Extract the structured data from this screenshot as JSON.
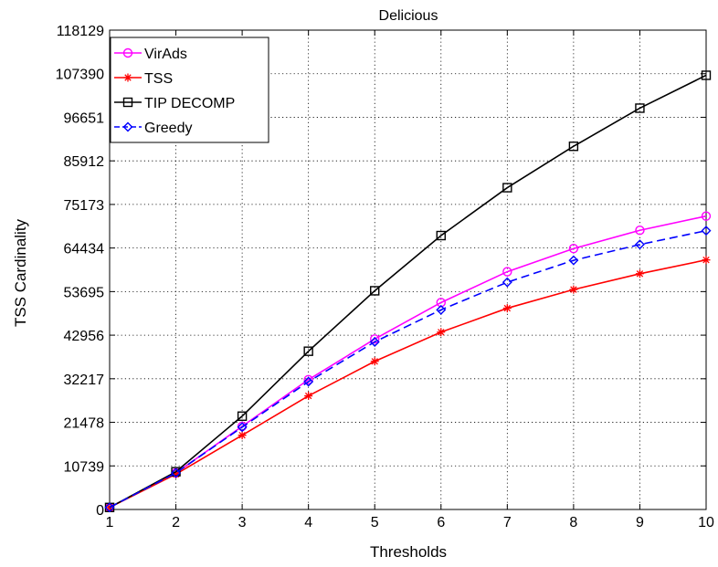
{
  "chart_data": {
    "type": "line",
    "title": "Delicious",
    "xlabel": "Thresholds",
    "ylabel": "TSS Cardinality",
    "x": [
      1,
      2,
      3,
      4,
      5,
      6,
      7,
      8,
      9,
      10
    ],
    "xlim": [
      1,
      10
    ],
    "ylim": [
      0,
      118129
    ],
    "xticks": [
      "1",
      "2",
      "3",
      "4",
      "5",
      "6",
      "7",
      "8",
      "9",
      "10"
    ],
    "yticks": [
      0,
      10739,
      21478,
      32217,
      42956,
      53695,
      64434,
      75173,
      85912,
      96651,
      107390,
      118129
    ],
    "ytick_labels": [
      "0",
      "10739",
      "21478",
      "32217",
      "42956",
      "53695",
      "64434",
      "75173",
      "85912",
      "96651",
      "107390",
      "118129"
    ],
    "grid": true,
    "legend_position": "top-left",
    "series": [
      {
        "name": "VirAds",
        "color": "#ff00ff",
        "marker": "circle",
        "line_style": "solid",
        "values": [
          500,
          9000,
          20500,
          32000,
          42000,
          51000,
          58600,
          64300,
          68800,
          72300
        ]
      },
      {
        "name": "TSS",
        "color": "#ff0000",
        "marker": "star",
        "line_style": "solid",
        "values": [
          500,
          8700,
          18300,
          28000,
          36500,
          43700,
          49600,
          54200,
          58100,
          61500
        ]
      },
      {
        "name": "TIP DECOMP",
        "color": "#000000",
        "marker": "square",
        "line_style": "solid",
        "values": [
          500,
          9300,
          23000,
          39000,
          53900,
          67500,
          79300,
          89500,
          98900,
          107000
        ]
      },
      {
        "name": "Greedy",
        "color": "#0000ff",
        "marker": "diamond",
        "line_style": "dashed",
        "values": [
          500,
          9000,
          20300,
          31500,
          41300,
          49200,
          56000,
          61400,
          65300,
          68700
        ]
      }
    ]
  }
}
